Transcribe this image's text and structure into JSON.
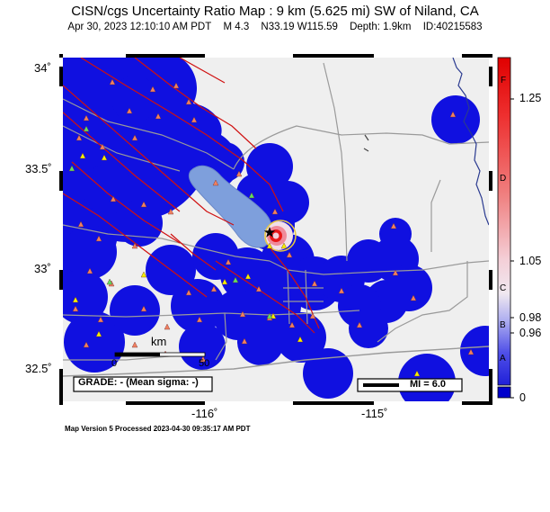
{
  "header": {
    "title": "CISN/cgs Uncertainty Ratio Map : 9 km (5.625 mi) SW of Niland, CA",
    "datetime": "Apr 30, 2023 12:10:10 AM PDT",
    "magnitude": "M 4.3",
    "location": "N33.19 W115.59",
    "depth": "Depth: 1.9km",
    "event_id": "ID:40215583"
  },
  "axes": {
    "lat_ticks": [
      "34˚",
      "33.5˚",
      "33˚",
      "32.5˚"
    ],
    "lon_ticks": [
      "-116˚",
      "-115˚"
    ]
  },
  "colorbar": {
    "value_labels": [
      "1.25",
      "1.05",
      "0.98",
      "0.96",
      "0"
    ],
    "grade_letters": [
      "F",
      "D",
      "C",
      "B",
      "A"
    ],
    "colors": {
      "top": "#e00000",
      "mid": "#f2e6ee",
      "low": "#3838e0",
      "bottom": "#0000cc"
    }
  },
  "legend": {
    "grade_text": "GRADE: - (Mean sigma: -)",
    "mi_text": "MI = 6.0",
    "scale_unit": "km",
    "scale_start": "0",
    "scale_end": "50"
  },
  "footer": {
    "processed": "Map Version 5 Processed 2023-04-30 09:35:17 AM PDT"
  },
  "colors": {
    "land": "#efefef",
    "uncertainty_blue": "#1010e0",
    "lake": "#7e9fdc",
    "fault": "#d01010",
    "road": "#9a9a9a",
    "river": "#2a3a90",
    "station_red": "#f08060",
    "station_yellow": "#f4f000",
    "station_green": "#60e060"
  }
}
